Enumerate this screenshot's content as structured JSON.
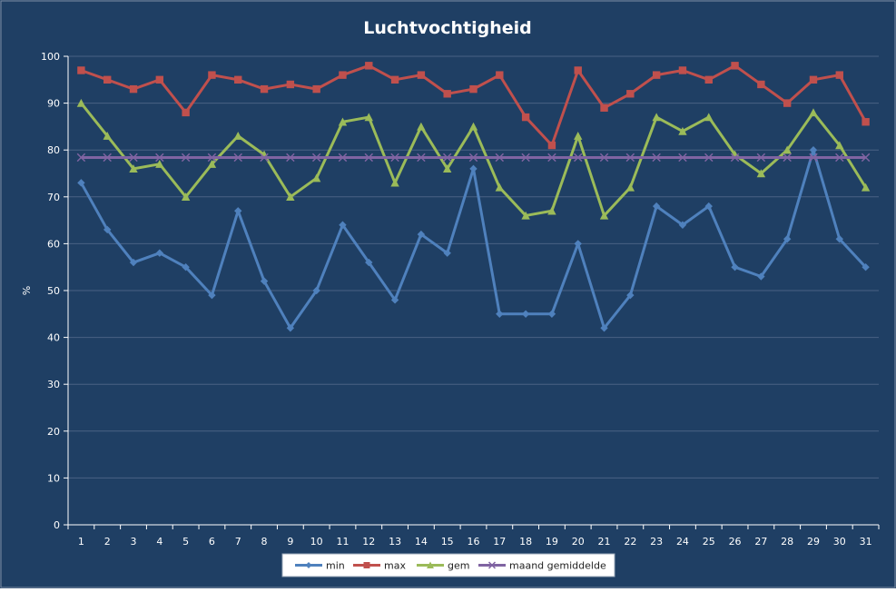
{
  "chart_data": {
    "type": "line",
    "title": "Luchtvochtigheid",
    "xlabel": "",
    "ylabel": "%",
    "ylim": [
      0,
      100
    ],
    "yticks": [
      0,
      10,
      20,
      30,
      40,
      50,
      60,
      70,
      80,
      90,
      100
    ],
    "x": [
      "1",
      "2",
      "3",
      "4",
      "5",
      "6",
      "7",
      "8",
      "9",
      "10",
      "11",
      "12",
      "13",
      "14",
      "15",
      "16",
      "17",
      "18",
      "19",
      "20",
      "21",
      "22",
      "23",
      "24",
      "25",
      "26",
      "27",
      "28",
      "29",
      "30",
      "31"
    ],
    "grid": "horizontal",
    "legend": "bottom",
    "series": [
      {
        "name": "min",
        "color": "#4f81bd",
        "marker": "diamond",
        "values": [
          73,
          63,
          56,
          58,
          55,
          49,
          67,
          52,
          42,
          50,
          64,
          56,
          48,
          62,
          58,
          76,
          45,
          45,
          45,
          60,
          42,
          49,
          68,
          64,
          68,
          55,
          53,
          61,
          80,
          61,
          55
        ]
      },
      {
        "name": "max",
        "color": "#c0504d",
        "marker": "square",
        "values": [
          97,
          95,
          93,
          95,
          88,
          96,
          95,
          93,
          94,
          93,
          96,
          98,
          95,
          96,
          92,
          93,
          96,
          87,
          81,
          97,
          89,
          92,
          96,
          97,
          95,
          98,
          94,
          90,
          95,
          96,
          86
        ]
      },
      {
        "name": "gem",
        "color": "#9bbb59",
        "marker": "triangle",
        "values": [
          90,
          83,
          76,
          77,
          70,
          77,
          83,
          79,
          70,
          74,
          86,
          87,
          73,
          85,
          76,
          85,
          72,
          66,
          67,
          83,
          66,
          72,
          87,
          84,
          87,
          79,
          75,
          80,
          88,
          81,
          72
        ]
      },
      {
        "name": "maand gemiddelde",
        "color": "#8064a2",
        "marker": "x",
        "values": [
          78.4,
          78.4,
          78.4,
          78.4,
          78.4,
          78.4,
          78.4,
          78.4,
          78.4,
          78.4,
          78.4,
          78.4,
          78.4,
          78.4,
          78.4,
          78.4,
          78.4,
          78.4,
          78.4,
          78.4,
          78.4,
          78.4,
          78.4,
          78.4,
          78.4,
          78.4,
          78.4,
          78.4,
          78.4,
          78.4,
          78.4
        ]
      }
    ]
  },
  "colors": {
    "background": "#1f3f64",
    "text": "#ffffff",
    "axis": "#ffffff",
    "grid": "#4a6284",
    "legend_background": "#ffffff",
    "legend_text": "#1f1f1f"
  }
}
